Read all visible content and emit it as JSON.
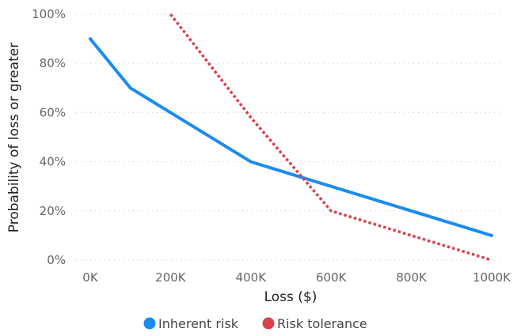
{
  "chart_data": {
    "type": "line",
    "title": "",
    "xlabel": "Loss ($)",
    "ylabel": "Probability of loss or greater",
    "xlim": [
      0,
      1000000
    ],
    "ylim": [
      0,
      100
    ],
    "x_ticks": [
      "0K",
      "200K",
      "400K",
      "600K",
      "800K",
      "1000K"
    ],
    "y_ticks": [
      "0%",
      "20%",
      "40%",
      "60%",
      "80%",
      "100%"
    ],
    "grid": "horizontal dotted",
    "legend_position": "bottom-center",
    "series": [
      {
        "name": "Inherent risk",
        "color": "#1a8cf0",
        "style": "solid",
        "x": [
          0,
          100000,
          400000,
          1000000
        ],
        "y": [
          90,
          70,
          40,
          10
        ]
      },
      {
        "name": "Risk tolerance",
        "color": "#d9414f",
        "style": "dotted",
        "x": [
          200000,
          400000,
          600000,
          1000000
        ],
        "y": [
          100,
          58,
          20,
          0
        ]
      }
    ]
  }
}
